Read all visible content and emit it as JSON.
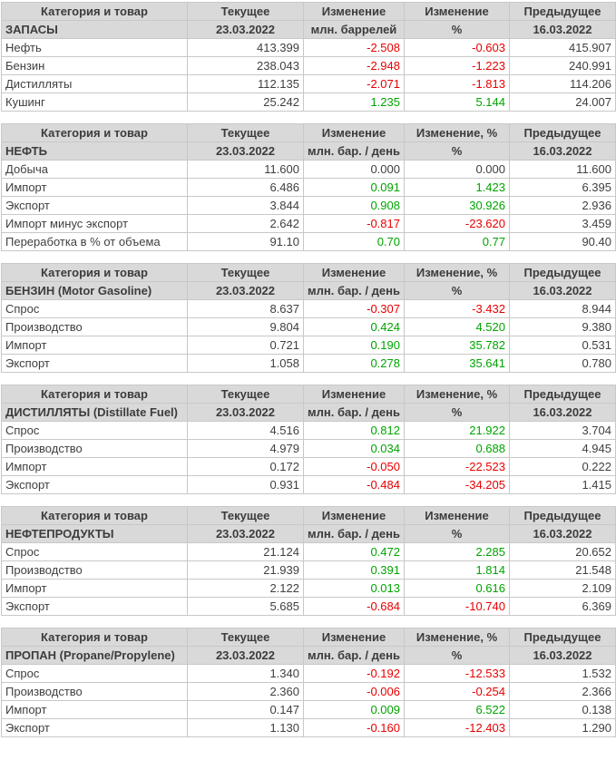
{
  "colors": {
    "header_background": "#d9d9d9",
    "table_border": "#c8c8c8",
    "text": "#3f3f3f",
    "positive_value": "#00a400",
    "negative_value": "#e80000"
  },
  "tables": [
    {
      "col_headers": [
        "Категория и товар",
        "Текущее",
        "Изменение",
        "Изменение",
        "Предыдущее"
      ],
      "sub_headers": [
        "ЗАПАСЫ",
        "23.03.2022",
        "млн. баррелей",
        "%",
        "16.03.2022"
      ],
      "rows": [
        {
          "label": "Нефть",
          "current": "413.399",
          "change": "-2.508",
          "change_pct": "-0.603",
          "previous": "415.907"
        },
        {
          "label": "Бензин",
          "current": "238.043",
          "change": "-2.948",
          "change_pct": "-1.223",
          "previous": "240.991"
        },
        {
          "label": "Дистилляты",
          "current": "112.135",
          "change": "-2.071",
          "change_pct": "-1.813",
          "previous": "114.206"
        },
        {
          "label": "Кушинг",
          "current": "25.242",
          "change": "1.235",
          "change_pct": "5.144",
          "previous": "24.007"
        }
      ]
    },
    {
      "col_headers": [
        "Категория и товар",
        "Текущее",
        "Изменение",
        "Изменение, %",
        "Предыдущее"
      ],
      "sub_headers": [
        "НЕФТЬ",
        "23.03.2022",
        "млн. бар. / день",
        "%",
        "16.03.2022"
      ],
      "rows": [
        {
          "label": "Добыча",
          "current": "11.600",
          "change": "0.000",
          "change_pct": "0.000",
          "previous": "11.600"
        },
        {
          "label": "Импорт",
          "current": "6.486",
          "change": "0.091",
          "change_pct": "1.423",
          "previous": "6.395"
        },
        {
          "label": "Экспорт",
          "current": "3.844",
          "change": "0.908",
          "change_pct": "30.926",
          "previous": "2.936"
        },
        {
          "label": "Импорт минус экспорт",
          "current": "2.642",
          "change": "-0.817",
          "change_pct": "-23.620",
          "previous": "3.459"
        },
        {
          "label": "Переработка в % от объема",
          "current": "91.10",
          "change": "0.70",
          "change_pct": "0.77",
          "previous": "90.40"
        }
      ]
    },
    {
      "col_headers": [
        "Категория и товар",
        "Текущее",
        "Изменение",
        "Изменение, %",
        "Предыдущее"
      ],
      "sub_headers": [
        "БЕНЗИН (Motor Gasoline)",
        "23.03.2022",
        "млн. бар. / день",
        "%",
        "16.03.2022"
      ],
      "rows": [
        {
          "label": "Спрос",
          "current": "8.637",
          "change": "-0.307",
          "change_pct": "-3.432",
          "previous": "8.944"
        },
        {
          "label": "Производство",
          "current": "9.804",
          "change": "0.424",
          "change_pct": "4.520",
          "previous": "9.380"
        },
        {
          "label": "Импорт",
          "current": "0.721",
          "change": "0.190",
          "change_pct": "35.782",
          "previous": "0.531"
        },
        {
          "label": "Экспорт",
          "current": "1.058",
          "change": "0.278",
          "change_pct": "35.641",
          "previous": "0.780"
        }
      ]
    },
    {
      "col_headers": [
        "Категория и товар",
        "Текущее",
        "Изменение",
        "Изменение, %",
        "Предыдущее"
      ],
      "sub_headers": [
        "ДИСТИЛЛЯТЫ (Distillate Fuel)",
        "23.03.2022",
        "млн. бар. / день",
        "%",
        "16.03.2022"
      ],
      "rows": [
        {
          "label": "Спрос",
          "current": "4.516",
          "change": "0.812",
          "change_pct": "21.922",
          "previous": "3.704"
        },
        {
          "label": "Производство",
          "current": "4.979",
          "change": "0.034",
          "change_pct": "0.688",
          "previous": "4.945"
        },
        {
          "label": "Импорт",
          "current": "0.172",
          "change": "-0.050",
          "change_pct": "-22.523",
          "previous": "0.222"
        },
        {
          "label": "Экспорт",
          "current": "0.931",
          "change": "-0.484",
          "change_pct": "-34.205",
          "previous": "1.415"
        }
      ]
    },
    {
      "col_headers": [
        "Категория и товар",
        "Текущее",
        "Изменение",
        "Изменение",
        "Предыдущее"
      ],
      "sub_headers": [
        "НЕФТЕПРОДУКТЫ",
        "23.03.2022",
        "млн. бар. / день",
        "%",
        "16.03.2022"
      ],
      "rows": [
        {
          "label": "Спрос",
          "current": "21.124",
          "change": "0.472",
          "change_pct": "2.285",
          "previous": "20.652"
        },
        {
          "label": "Производство",
          "current": "21.939",
          "change": "0.391",
          "change_pct": "1.814",
          "previous": "21.548"
        },
        {
          "label": "Импорт",
          "current": "2.122",
          "change": "0.013",
          "change_pct": "0.616",
          "previous": "2.109"
        },
        {
          "label": "Экспорт",
          "current": "5.685",
          "change": "-0.684",
          "change_pct": "-10.740",
          "previous": "6.369"
        }
      ]
    },
    {
      "col_headers": [
        "Категория и товар",
        "Текущее",
        "Изменение",
        "Изменение, %",
        "Предыдущее"
      ],
      "sub_headers": [
        "ПРОПАН (Propane/Propylene)",
        "23.03.2022",
        "млн. бар. / день",
        "%",
        "16.03.2022"
      ],
      "rows": [
        {
          "label": "Спрос",
          "current": "1.340",
          "change": "-0.192",
          "change_pct": "-12.533",
          "previous": "1.532"
        },
        {
          "label": "Производство",
          "current": "2.360",
          "change": "-0.006",
          "change_pct": "-0.254",
          "previous": "2.366"
        },
        {
          "label": "Импорт",
          "current": "0.147",
          "change": "0.009",
          "change_pct": "6.522",
          "previous": "0.138"
        },
        {
          "label": "Экспорт",
          "current": "1.130",
          "change": "-0.160",
          "change_pct": "-12.403",
          "previous": "1.290"
        }
      ]
    }
  ]
}
